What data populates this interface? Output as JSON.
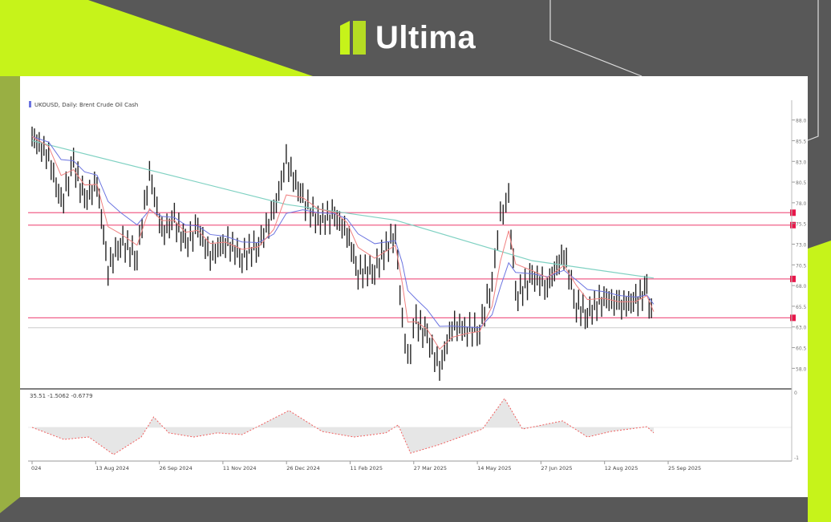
{
  "brand": {
    "name": "Ultima",
    "accent": "#c6f31a",
    "background": "#585858"
  },
  "chart_data": {
    "type": "line",
    "title": "UKOUSD, Daily: Brent Crude Oil Cash",
    "ylim": [
      56,
      90
    ],
    "price": {
      "dates": [
        "2024-07-03",
        "2024-07-15",
        "2024-07-24",
        "2024-08-02",
        "2024-08-10",
        "2024-08-19",
        "2024-08-27",
        "2024-09-05",
        "2024-09-17",
        "2024-09-26",
        "2024-10-05",
        "2024-10-14",
        "2024-10-22",
        "2024-10-31",
        "2024-11-09",
        "2024-11-20",
        "2024-12-02",
        "2024-12-14",
        "2024-12-25",
        "2025-01-03",
        "2025-01-15",
        "2025-01-26",
        "2025-02-07",
        "2025-02-16",
        "2025-02-24",
        "2025-03-08",
        "2025-03-23",
        "2025-03-28",
        "2025-04-01",
        "2025-04-07",
        "2025-04-15",
        "2025-04-24",
        "2025-05-03",
        "2025-05-14",
        "2025-05-23",
        "2025-06-01",
        "2025-06-07",
        "2025-06-13",
        "2025-06-18",
        "2025-06-30",
        "2025-07-11",
        "2025-07-23",
        "2025-08-01",
        "2025-08-09",
        "2025-08-21",
        "2025-09-01",
        "2025-09-13",
        "2025-09-21",
        "2025-09-26"
      ],
      "values": [
        86.0,
        83.6,
        77.8,
        82.7,
        78.3,
        80.3,
        70.0,
        73.4,
        71.5,
        81.7,
        74.4,
        75.9,
        73.0,
        74.9,
        71.5,
        73.4,
        71.5,
        73.0,
        76.9,
        83.1,
        78.3,
        75.9,
        76.4,
        74.4,
        69.6,
        70.0,
        74.4,
        63.7,
        58.9,
        63.7,
        61.8,
        57.9,
        63.2,
        62.7,
        62.7,
        68.5,
        76.4,
        78.3,
        66.6,
        69.0,
        68.1,
        71.9,
        65.6,
        64.6,
        66.6,
        65.6,
        66.1,
        67.5,
        62.9
      ]
    },
    "long_ma": {
      "color": "#7fd1c2",
      "dates": [
        "2024-07-03",
        "2024-10-14",
        "2025-01-03",
        "2025-03-23",
        "2025-06-30",
        "2025-09-26"
      ],
      "values": [
        85.5,
        81.2,
        77.8,
        75.9,
        71.0,
        68.9
      ]
    },
    "fast_ma_color": "#f08080",
    "mid_ma_color": "#6b74e0",
    "levels": [
      76.8,
      75.3,
      68.8,
      64.1
    ],
    "level_color": "#f0608a",
    "current_price": 62.9,
    "x_ticks": [
      "024",
      "13 Aug 2024",
      "26 Sep 2024",
      "11 Nov 2024",
      "26 Dec 2024",
      "11 Feb 2025",
      "27 Mar 2025",
      "14 May 2025",
      "27 Jun 2025",
      "12 Aug 2025",
      "25 Sep 2025"
    ],
    "oscillator": {
      "label": "35.51 -1.5062 -0.6779",
      "color": "#f06060",
      "ylim": [
        -1.8,
        1.5
      ],
      "dates": [
        "2024-07-03",
        "2024-07-26",
        "2024-08-13",
        "2024-08-31",
        "2024-09-20",
        "2024-09-29",
        "2024-10-10",
        "2024-10-28",
        "2024-11-14",
        "2024-12-02",
        "2025-01-05",
        "2025-01-29",
        "2025-02-21",
        "2025-03-16",
        "2025-03-25",
        "2025-04-03",
        "2025-04-23",
        "2025-05-25",
        "2025-06-10",
        "2025-06-23",
        "2025-07-22",
        "2025-08-09",
        "2025-08-26",
        "2025-09-21",
        "2025-09-26"
      ],
      "values": [
        0,
        -0.5,
        -0.4,
        -1.13,
        -0.4,
        0.43,
        -0.23,
        -0.4,
        -0.23,
        -0.3,
        0.7,
        -0.17,
        -0.4,
        -0.23,
        0.1,
        -1.07,
        -0.73,
        -0.07,
        1.2,
        -0.07,
        0.27,
        -0.4,
        -0.17,
        0.03,
        -0.23
      ]
    }
  }
}
